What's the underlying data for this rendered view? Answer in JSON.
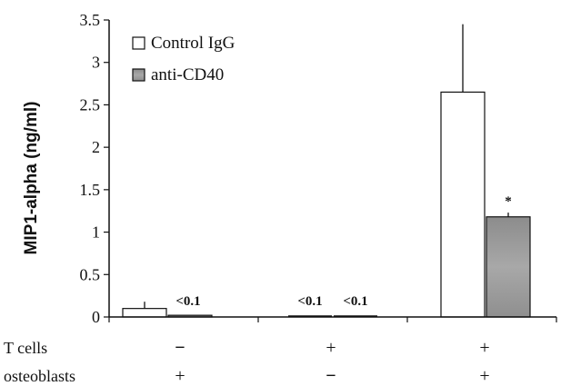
{
  "chart_data": {
    "type": "bar",
    "ylabel": "MIP1-alpha (ng/ml)",
    "ylim": [
      0,
      3.5
    ],
    "yticks": [
      "0",
      "0.5",
      "1",
      "1.5",
      "2",
      "2.5",
      "3",
      "3.5"
    ],
    "groups": [
      {
        "t_cells": "−",
        "osteoblasts": "+"
      },
      {
        "t_cells": "+",
        "osteoblasts": "−"
      },
      {
        "t_cells": "+",
        "osteoblasts": "+"
      }
    ],
    "row_labels": {
      "t_cells": "T cells",
      "osteoblasts": "osteoblasts"
    },
    "series": [
      {
        "name": "Control IgG",
        "color": "#ffffff",
        "values": [
          0.1,
          0.0,
          2.65
        ],
        "errors": [
          0.08,
          0.0,
          0.8
        ],
        "bar_labels": [
          "",
          "<0.1",
          ""
        ]
      },
      {
        "name": "anti-CD40",
        "color": "#9a9a9a",
        "values": [
          0.02,
          0.0,
          1.18
        ],
        "errors": [
          0.0,
          0.0,
          0.05
        ],
        "bar_labels": [
          "<0.1",
          "<0.1",
          "*"
        ]
      }
    ],
    "legend_position": "top-left",
    "grid": false
  }
}
